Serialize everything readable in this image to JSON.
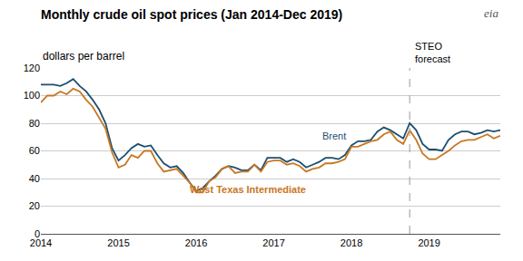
{
  "chart_data": {
    "type": "line",
    "title": "Monthly crude oil spot prices (Jan 2014-Dec 2019)",
    "subtitle": "dollars per barrel",
    "logo": "eia",
    "background_color": "#ffffff",
    "grid": true,
    "grid_color": "#cccccc",
    "x": [
      2014,
      2014.0833333333333,
      2014.1666666666667,
      2014.25,
      2014.3333333333333,
      2014.4166666666667,
      2014.5,
      2014.5833333333333,
      2014.6666666666667,
      2014.75,
      2014.8333333333333,
      2014.9166666666667,
      2015,
      2015.0833333333333,
      2015.1666666666667,
      2015.25,
      2015.3333333333333,
      2015.4166666666667,
      2015.5,
      2015.5833333333333,
      2015.6666666666667,
      2015.75,
      2015.8333333333333,
      2015.9166666666667,
      2016,
      2016.0833333333333,
      2016.1666666666667,
      2016.25,
      2016.3333333333333,
      2016.4166666666667,
      2016.5,
      2016.5833333333333,
      2016.6666666666667,
      2016.75,
      2016.8333333333333,
      2016.9166666666667,
      2017,
      2017.0833333333333,
      2017.1666666666667,
      2017.25,
      2017.3333333333333,
      2017.4166666666667,
      2017.5,
      2017.5833333333333,
      2017.6666666666667,
      2017.75,
      2017.8333333333333,
      2017.9166666666667,
      2018,
      2018.0833333333333,
      2018.1666666666667,
      2018.25,
      2018.3333333333333,
      2018.4166666666667,
      2018.5,
      2018.5833333333333,
      2018.6666666666667,
      2018.75,
      2018.8333333333333,
      2018.9166666666667,
      2019,
      2019.0833333333333,
      2019.1666666666667,
      2019.25,
      2019.3333333333333,
      2019.4166666666667,
      2019.5,
      2019.5833333333333,
      2019.6666666666667,
      2019.75,
      2019.8333333333333,
      2019.9166666666667
    ],
    "xlim": [
      2014,
      2019.9166666666667
    ],
    "xticks": [
      2014,
      2015,
      2016,
      2017,
      2018,
      2019
    ],
    "ylim": [
      0,
      120
    ],
    "yticks": [
      0,
      20,
      40,
      60,
      80,
      100,
      120
    ],
    "series": [
      {
        "name": "Brent",
        "color": "#1b4f72",
        "label_x": 2017.6,
        "label_y": 71,
        "values": [
          108,
          108,
          108,
          107,
          109,
          112,
          107,
          103,
          97,
          90,
          80,
          62,
          53,
          57,
          62,
          65,
          63,
          64,
          57,
          51,
          48,
          49,
          44,
          37,
          31,
          33,
          38,
          42,
          47,
          49,
          48,
          46,
          46,
          50,
          46,
          55,
          55,
          55,
          52,
          54,
          52,
          48,
          50,
          52,
          55,
          55,
          54,
          57,
          64,
          67,
          67,
          68,
          74,
          77,
          75,
          72,
          69,
          80,
          75,
          65,
          61,
          61,
          60,
          68,
          72,
          74,
          74,
          72,
          73,
          75,
          74,
          75
        ]
      },
      {
        "name": "West Texas Intermediate",
        "color": "#c87722",
        "label_x": 2015.9,
        "label_y": 32,
        "values": [
          95,
          100,
          100,
          103,
          101,
          105,
          103,
          97,
          92,
          84,
          76,
          59,
          48,
          50,
          57,
          55,
          60,
          60,
          51,
          45,
          46,
          47,
          42,
          37,
          30,
          30,
          38,
          41,
          47,
          49,
          44,
          45,
          45,
          50,
          45,
          52,
          53,
          53,
          50,
          51,
          49,
          45,
          47,
          48,
          51,
          51,
          52,
          54,
          63,
          63,
          65,
          67,
          68,
          72,
          74,
          68,
          65,
          75,
          68,
          58,
          54,
          54,
          57,
          60,
          64,
          67,
          68,
          68,
          70,
          72,
          69,
          71
        ]
      }
    ],
    "vline": {
      "x": 2018.75,
      "label": "STEO\nforecast",
      "color": "#aaaaaa",
      "line_style": "dashed"
    }
  }
}
